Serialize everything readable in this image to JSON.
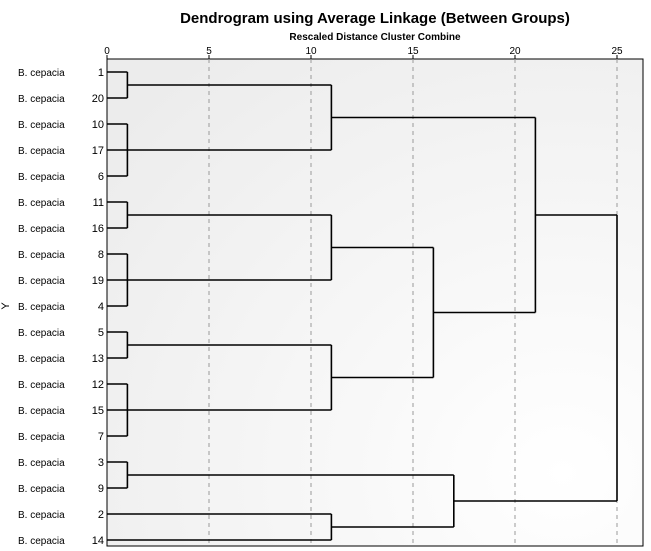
{
  "chart_data": {
    "type": "dendrogram",
    "title": "Dendrogram using Average Linkage (Between Groups)",
    "xlabel": "Rescaled Distance Cluster Combine",
    "ylabel": "Y",
    "xlim": [
      0,
      25
    ],
    "xticks": [
      0,
      5,
      10,
      15,
      20,
      25
    ],
    "grid": true,
    "leaves": [
      {
        "label": "B. cepacia",
        "case": "1"
      },
      {
        "label": "B. cepacia",
        "case": "20"
      },
      {
        "label": "B. cepacia",
        "case": "10"
      },
      {
        "label": "B. cepacia",
        "case": "17"
      },
      {
        "label": "B. cepacia",
        "case": "6"
      },
      {
        "label": "B. cepacia",
        "case": "11"
      },
      {
        "label": "B. cepacia",
        "case": "16"
      },
      {
        "label": "B. cepacia",
        "case": "8"
      },
      {
        "label": "B. cepacia",
        "case": "19"
      },
      {
        "label": "B. cepacia",
        "case": "4"
      },
      {
        "label": "B. cepacia",
        "case": "5"
      },
      {
        "label": "B. cepacia",
        "case": "13"
      },
      {
        "label": "B. cepacia",
        "case": "12"
      },
      {
        "label": "B. cepacia",
        "case": "15"
      },
      {
        "label": "B. cepacia",
        "case": "7"
      },
      {
        "label": "B. cepacia",
        "case": "3"
      },
      {
        "label": "B. cepacia",
        "case": "9"
      },
      {
        "label": "B. cepacia",
        "case": "2"
      },
      {
        "label": "B. cepacia",
        "case": "14"
      }
    ],
    "merges": [
      {
        "members": [
          "1",
          "20"
        ],
        "distance": 1
      },
      {
        "members": [
          "10",
          "17",
          "6"
        ],
        "distance": 1
      },
      {
        "members": [
          "11",
          "16"
        ],
        "distance": 1
      },
      {
        "members": [
          "8",
          "19",
          "4"
        ],
        "distance": 1
      },
      {
        "members": [
          "5",
          "13"
        ],
        "distance": 1
      },
      {
        "members": [
          "12",
          "15",
          "7"
        ],
        "distance": 1
      },
      {
        "members": [
          "3",
          "9"
        ],
        "distance": 1
      },
      {
        "members": [
          "2",
          "14"
        ],
        "distance": 11
      },
      {
        "members": [
          "(1,20)",
          "(10,17,6)"
        ],
        "distance": 11
      },
      {
        "members": [
          "(11,16)",
          "(8,19,4)"
        ],
        "distance": 11
      },
      {
        "members": [
          "(5,13)",
          "(12,15,7)"
        ],
        "distance": 11
      },
      {
        "members": [
          "(11,16,8,19,4)",
          "(5,13,12,15,7)"
        ],
        "distance": 16
      },
      {
        "members": [
          "(3,9)",
          "(2,14)"
        ],
        "distance": 17
      },
      {
        "members": [
          "(1,20,10,17,6)",
          "(11,16,8,19,4,5,13,12,15,7)"
        ],
        "distance": 21
      },
      {
        "members": [
          "(first 15 cases)",
          "(3,9,2,14)"
        ],
        "distance": 25
      }
    ]
  }
}
